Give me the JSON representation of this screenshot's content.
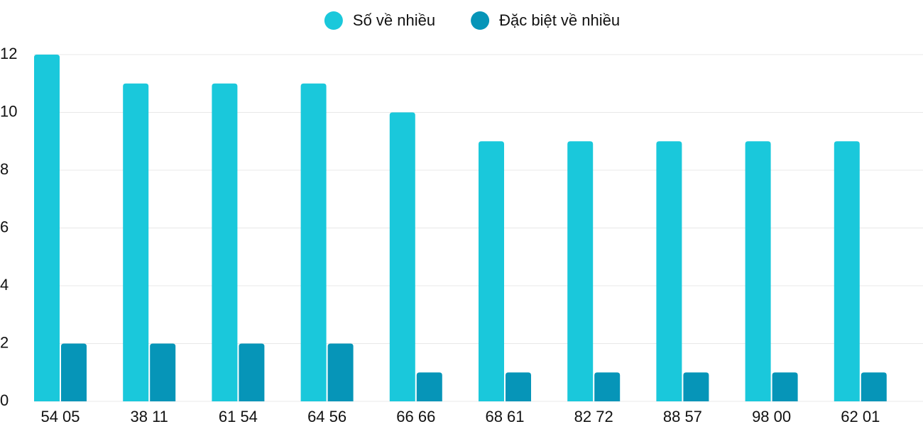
{
  "chart_data": {
    "type": "bar",
    "categories": [
      "54 05",
      "38 11",
      "61 54",
      "64 56",
      "66 66",
      "68 61",
      "82 72",
      "88 57",
      "98 00",
      "62 01"
    ],
    "series": [
      {
        "name": "Số về nhiều",
        "color": "#1ac8db",
        "values": [
          12,
          11,
          11,
          11,
          10,
          9,
          9,
          9,
          9,
          9
        ]
      },
      {
        "name": "Đặc biệt về nhiều",
        "color": "#0695b8",
        "values": [
          2,
          2,
          2,
          2,
          1,
          1,
          1,
          1,
          1,
          1
        ]
      }
    ],
    "ylim": [
      0,
      12
    ],
    "yticks": [
      0,
      2,
      4,
      6,
      8,
      10,
      12
    ],
    "grid": true,
    "legend": "top"
  }
}
